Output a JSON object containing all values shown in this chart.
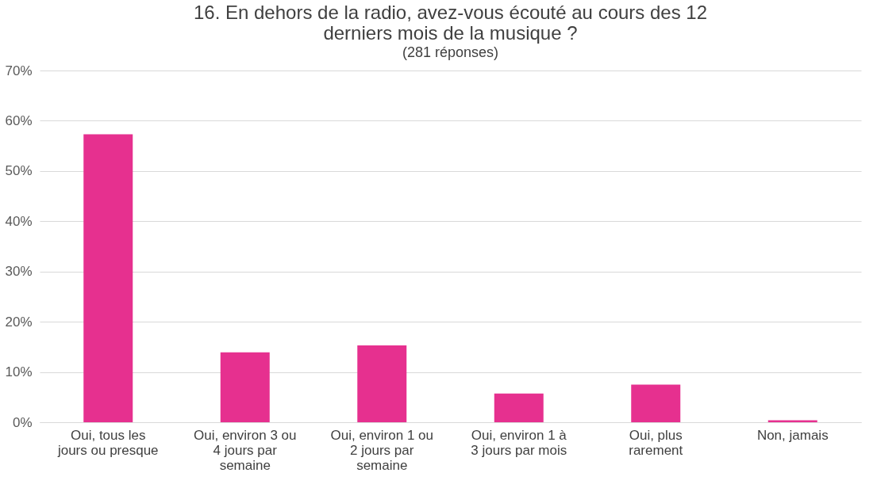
{
  "chart_data": {
    "type": "bar",
    "title": "16. En dehors de la radio, avez-vous écouté au cours des 12 derniers mois de la musique ?",
    "subtitle": "(281 réponses)",
    "categories": [
      "Oui, tous les jours ou presque",
      "Oui, environ 3 ou 4 jours par semaine",
      "Oui, environ 1 ou 2 jours par semaine",
      "Oui, environ 1 à 3 jours par mois",
      "Oui, plus rarement",
      "Non, jamais"
    ],
    "values": [
      57.3,
      13.9,
      15.3,
      5.7,
      7.5,
      0.4
    ],
    "color": "#e6308f",
    "ylim": [
      0,
      70
    ],
    "yticks": [
      {
        "value": 0,
        "label": "0%"
      },
      {
        "value": 10,
        "label": "10%"
      },
      {
        "value": 20,
        "label": "20%"
      },
      {
        "value": 30,
        "label": "30%"
      },
      {
        "value": 40,
        "label": "40%"
      },
      {
        "value": 50,
        "label": "50%"
      },
      {
        "value": 60,
        "label": "60%"
      },
      {
        "value": 70,
        "label": "70%"
      }
    ],
    "grid": "y"
  }
}
